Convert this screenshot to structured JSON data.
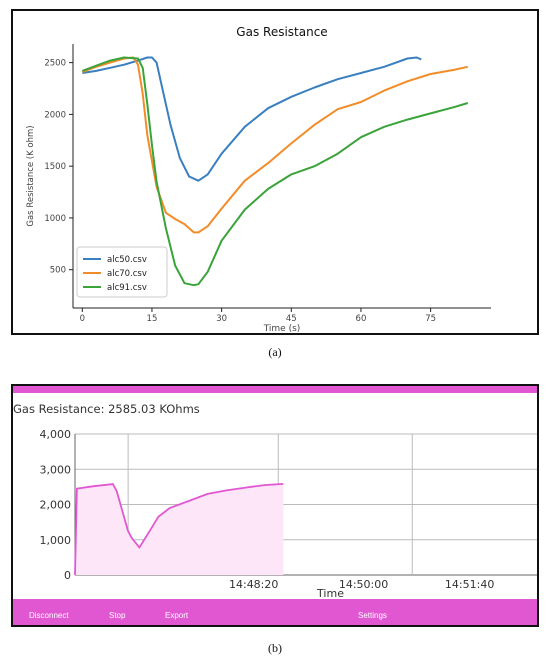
{
  "figure_a": {
    "caption": "(a)"
  },
  "figure_b": {
    "caption": "(b)",
    "header": "Gas Resistance: 2585.03 KOhms",
    "buttons": {
      "disconnect": "Disconnect",
      "stop": "Stop",
      "export": "Export",
      "settings": "Settings"
    }
  },
  "colors": {
    "blue": "#3a7fbf",
    "orange": "#f28c28",
    "green": "#3aa33a",
    "magenta": "#e157d2",
    "fill": "#fce6f8"
  },
  "chart_data": [
    {
      "type": "line",
      "title": "Gas Resistance",
      "xlabel": "Time (s)",
      "ylabel": "Gas Resistance (K ohm)",
      "xlim": [
        -2,
        88
      ],
      "ylim": [
        130,
        2680
      ],
      "xticks": [
        0,
        15,
        30,
        45,
        60,
        75
      ],
      "yticks": [
        500,
        1000,
        1500,
        2000,
        2500
      ],
      "grid": false,
      "legend": "lower-left",
      "series": [
        {
          "name": "alc50.csv",
          "color": "#3a7fbf",
          "x": [
            0,
            3,
            6,
            9,
            12,
            14,
            15,
            16,
            17,
            19,
            21,
            23,
            25,
            27,
            30,
            35,
            40,
            45,
            50,
            55,
            60,
            65,
            70,
            72,
            73
          ],
          "y": [
            2400,
            2420,
            2450,
            2480,
            2520,
            2550,
            2550,
            2500,
            2300,
            1900,
            1580,
            1400,
            1360,
            1420,
            1620,
            1880,
            2060,
            2170,
            2260,
            2340,
            2400,
            2460,
            2540,
            2550,
            2530
          ]
        },
        {
          "name": "alc70.csv",
          "color": "#f28c28",
          "x": [
            0,
            3,
            6,
            9,
            11,
            12,
            13,
            14,
            16,
            18,
            20,
            22,
            24,
            25,
            27,
            30,
            35,
            40,
            45,
            50,
            55,
            60,
            65,
            70,
            75,
            80,
            83
          ],
          "y": [
            2410,
            2460,
            2500,
            2540,
            2550,
            2480,
            2200,
            1800,
            1300,
            1050,
            990,
            940,
            860,
            860,
            920,
            1090,
            1360,
            1530,
            1720,
            1900,
            2050,
            2120,
            2230,
            2320,
            2390,
            2430,
            2460
          ]
        },
        {
          "name": "alc91.csv",
          "color": "#3aa33a",
          "x": [
            0,
            3,
            6,
            9,
            12,
            13,
            14,
            15,
            16,
            18,
            20,
            22,
            24,
            25,
            27,
            30,
            35,
            40,
            45,
            50,
            55,
            60,
            65,
            70,
            75,
            80,
            83
          ],
          "y": [
            2420,
            2470,
            2520,
            2550,
            2540,
            2450,
            2100,
            1700,
            1350,
            900,
            540,
            370,
            350,
            360,
            480,
            780,
            1080,
            1280,
            1420,
            1500,
            1620,
            1780,
            1880,
            1950,
            2010,
            2070,
            2110
          ]
        }
      ]
    },
    {
      "type": "area",
      "xlabel": "Time",
      "ylim": [
        0,
        4000
      ],
      "yticks": [
        0,
        1000,
        2000,
        3000,
        4000
      ],
      "yticklabels": [
        "0",
        "1,000",
        "2,000",
        "3,000",
        "4,000"
      ],
      "xticklabels": [
        "14:48:20",
        "14:50:00",
        "14:51:40"
      ],
      "x_tick_positions": [
        0.44,
        0.73,
        1.01
      ],
      "grid": true,
      "series": [
        {
          "color": "#e157d2",
          "x": [
            0,
            0.005,
            0.05,
            0.1,
            0.11,
            0.14,
            0.15,
            0.17,
            0.2,
            0.22,
            0.25,
            0.3,
            0.35,
            0.4,
            0.45,
            0.5,
            0.55
          ],
          "y": [
            0,
            2450,
            2520,
            2580,
            2380,
            1250,
            1050,
            780,
            1300,
            1650,
            1900,
            2100,
            2300,
            2400,
            2480,
            2550,
            2585
          ]
        }
      ]
    }
  ]
}
